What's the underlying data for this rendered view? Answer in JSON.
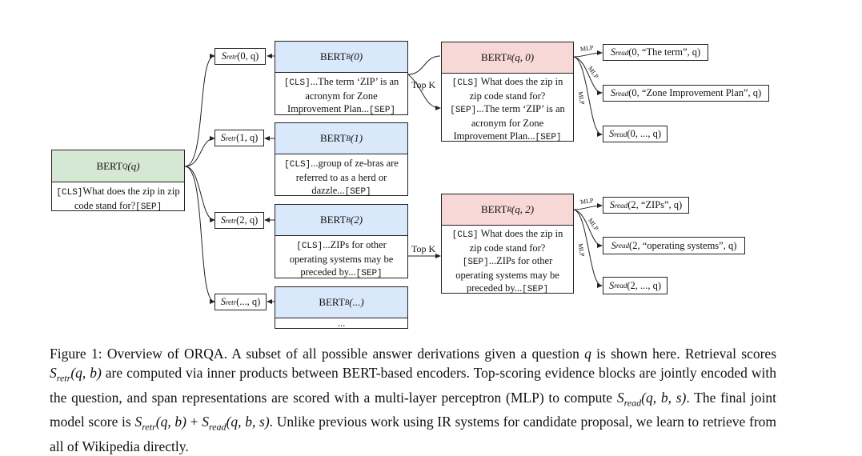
{
  "question_encoder": {
    "title_prefix": "BERT",
    "title_sub": "Q",
    "title_args": "(q)",
    "cls_token": "[CLS]",
    "text": "What does the zip in zip code stand for?",
    "sep_token": "[SEP]"
  },
  "retrieval_scores": [
    {
      "prefix": "S",
      "sub": "retr",
      "args": "(0, q)"
    },
    {
      "prefix": "S",
      "sub": "retr",
      "args": "(1, q)"
    },
    {
      "prefix": "S",
      "sub": "retr",
      "args": "(2, q)"
    },
    {
      "prefix": "S",
      "sub": "retr",
      "args": "(..., q)"
    }
  ],
  "block_encoders": [
    {
      "title_prefix": "BERT",
      "title_sub": "B",
      "title_args": "(0)",
      "cls": "[CLS]",
      "text": "...The term ‘ZIP’ is an acronym for Zone Improvement Plan...",
      "sep": "[SEP]"
    },
    {
      "title_prefix": "BERT",
      "title_sub": "B",
      "title_args": "(1)",
      "cls": "[CLS]",
      "text": "...group of ze-bras are referred to as a herd or dazzle...",
      "sep": "[SEP]"
    },
    {
      "title_prefix": "BERT",
      "title_sub": "B",
      "title_args": "(2)",
      "cls": "[CLS]",
      "text": "...ZIPs for other operating systems may be preceded by...",
      "sep": "[SEP]"
    },
    {
      "title_prefix": "BERT",
      "title_sub": "B",
      "title_args": "(...)",
      "text": "..."
    }
  ],
  "topk_label": "Top K",
  "readers": [
    {
      "title_prefix": "BERT",
      "title_sub": "R",
      "title_args": "(q, 0)",
      "cls": "[CLS]",
      "text_a": "What does the zip in zip code stand for?",
      "sep": "[SEP]",
      "text_b": "...The term ‘ZIP’ is an acronym for Zone Improvement Plan...",
      "sep2": "[SEP]"
    },
    {
      "title_prefix": "BERT",
      "title_sub": "R",
      "title_args": "(q, 2)",
      "cls": "[CLS]",
      "text_a": "What does the zip in zip code stand for?",
      "sep": "[SEP]",
      "text_b": "...ZIPs for other operating systems may be preceded by...",
      "sep2": "[SEP]"
    }
  ],
  "mlp_label": "MLP",
  "read_scores": [
    {
      "prefix": "S",
      "sub": "read",
      "args": "(0, “The term”, q)"
    },
    {
      "prefix": "S",
      "sub": "read",
      "args": "(0, “Zone Improvement Plan”, q)"
    },
    {
      "prefix": "S",
      "sub": "read",
      "args": "(0, ..., q)"
    },
    {
      "prefix": "S",
      "sub": "read",
      "args": "(2, “ZIPs”, q)"
    },
    {
      "prefix": "S",
      "sub": "read",
      "args": "(2, “operating systems”, q)"
    },
    {
      "prefix": "S",
      "sub": "read",
      "args": "(2, ..., q)"
    }
  ],
  "caption": {
    "label": "Figure 1:",
    "p1": "Overview of ORQA. A subset of all possible answer derivations given a question",
    "q": "q",
    "p2": "is shown here. Retrieval scores",
    "sretr_prefix": "S",
    "sretr_sub": "retr",
    "sretr_args": "(q, b)",
    "p3": "are computed via inner products between BERT-based encoders. Top-scoring evidence blocks are jointly encoded with the question, and span representations are scored with a multi-layer perceptron (MLP) to compute",
    "sread_args": "(q, b, s)",
    "p4": ". The final joint model score is",
    "plus": " + ",
    "p5": ". Unlike previous work using IR systems for candidate proposal, we learn to retrieve from all of Wikipedia directly."
  }
}
